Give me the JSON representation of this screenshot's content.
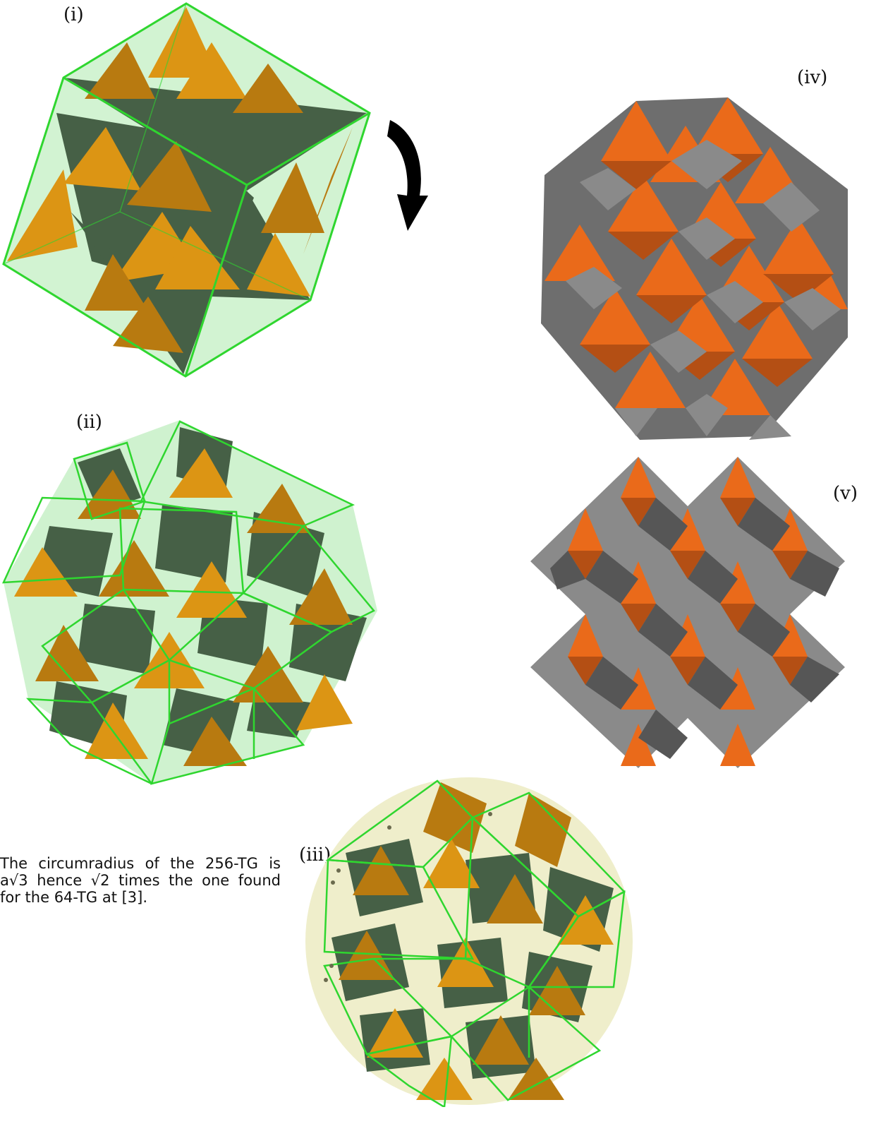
{
  "labels": {
    "i": "(i)",
    "ii": "(ii)",
    "iii": "(iii)",
    "iv": "(iv)",
    "v": "(v)"
  },
  "caption": "The circumradius of the 256-TG is a√3 hence √2 times the one found for the 64-TG at [3].",
  "colors": {
    "orange_dark": "#b87a10",
    "orange_light": "#dc9514",
    "green_face": "#466046",
    "green_edge": "#2fd62f",
    "green_fill": "#bfeebf",
    "red_orange": "#ea6a1a",
    "red_orange_dark": "#b44f14",
    "grey_light": "#8a8a8a",
    "grey_dark": "#565656",
    "sphere": "#efeecb"
  },
  "icons": {
    "rotation_arrow": "curved-down-arrow-icon"
  }
}
